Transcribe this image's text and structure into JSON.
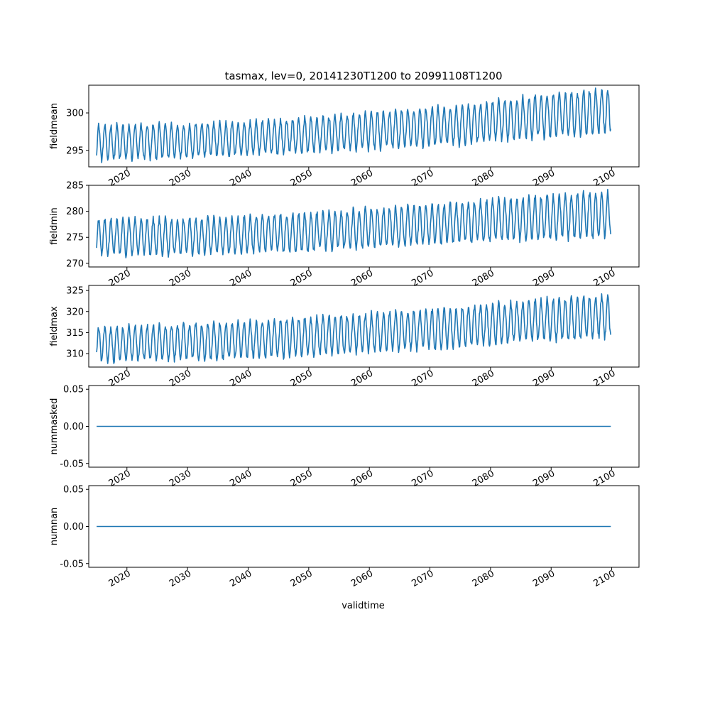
{
  "figure": {
    "title": "tasmax, lev=0, 20141230T1200 to 20991108T1200"
  },
  "colors": {
    "series": "#1f77b4",
    "axes": "#000000",
    "background": "#ffffff"
  },
  "chart_data": [
    {
      "type": "line",
      "ylabel": "fieldmean",
      "xlabel": "",
      "xlim": [
        2013.7,
        2104.5
      ],
      "ylim": [
        292.8,
        303.7
      ],
      "yticks": [
        295,
        300
      ],
      "ytick_labels": [
        "295",
        "300"
      ],
      "xticks": [
        2020,
        2030,
        2040,
        2050,
        2060,
        2070,
        2080,
        2090,
        2100
      ],
      "xtick_labels": [
        "2020",
        "2030",
        "2040",
        "2050",
        "2060",
        "2070",
        "2080",
        "2090",
        "2100"
      ],
      "series": [
        {
          "start": 2015.0,
          "end": 2099.85,
          "trend": [
            [
              2015,
              296.0
            ],
            [
              2030,
              296.3
            ],
            [
              2045,
              296.8
            ],
            [
              2060,
              297.6
            ],
            [
              2075,
              298.4
            ],
            [
              2085,
              299.3
            ],
            [
              2099.85,
              300.4
            ]
          ],
          "amplitude": [
            [
              2015,
              2.3
            ],
            [
              2040,
              2.2
            ],
            [
              2070,
              2.5
            ],
            [
              2085,
              2.7
            ],
            [
              2099.85,
              2.9
            ]
          ],
          "cycle": "annual"
        }
      ]
    },
    {
      "type": "line",
      "ylabel": "fieldmin",
      "xlabel": "",
      "xlim": [
        2013.7,
        2104.5
      ],
      "ylim": [
        269.3,
        285
      ],
      "yticks": [
        270,
        275,
        280,
        285
      ],
      "ytick_labels": [
        "270",
        "275",
        "280",
        "285"
      ],
      "xticks": [
        2020,
        2030,
        2040,
        2050,
        2060,
        2070,
        2080,
        2090,
        2100
      ],
      "xtick_labels": [
        "2020",
        "2030",
        "2040",
        "2050",
        "2060",
        "2070",
        "2080",
        "2090",
        "2100"
      ],
      "series": [
        {
          "start": 2015.0,
          "end": 2099.85,
          "trend": [
            [
              2015,
              275.0
            ],
            [
              2030,
              275.2
            ],
            [
              2045,
              275.7
            ],
            [
              2060,
              276.8
            ],
            [
              2075,
              277.8
            ],
            [
              2085,
              278.6
            ],
            [
              2099.85,
              279.4
            ]
          ],
          "amplitude": [
            [
              2015,
              3.4
            ],
            [
              2040,
              3.5
            ],
            [
              2070,
              3.7
            ],
            [
              2099.85,
              4.3
            ]
          ],
          "cycle": "annual"
        }
      ]
    },
    {
      "type": "line",
      "ylabel": "fieldmax",
      "xlabel": "",
      "xlim": [
        2013.7,
        2104.5
      ],
      "ylim": [
        306.8,
        326.2
      ],
      "yticks": [
        310,
        315,
        320,
        325
      ],
      "ytick_labels": [
        "310",
        "315",
        "320",
        "325"
      ],
      "xticks": [
        2020,
        2030,
        2040,
        2050,
        2060,
        2070,
        2080,
        2090,
        2100
      ],
      "xtick_labels": [
        "2020",
        "2030",
        "2040",
        "2050",
        "2060",
        "2070",
        "2080",
        "2090",
        "2100"
      ],
      "series": [
        {
          "start": 2015.0,
          "end": 2099.85,
          "trend": [
            [
              2015,
              312.2
            ],
            [
              2030,
              312.8
            ],
            [
              2045,
              313.6
            ],
            [
              2060,
              315.0
            ],
            [
              2075,
              316.2
            ],
            [
              2085,
              317.6
            ],
            [
              2099.85,
              319.0
            ]
          ],
          "amplitude": [
            [
              2015,
              4.0
            ],
            [
              2040,
              4.3
            ],
            [
              2070,
              4.6
            ],
            [
              2099.85,
              5.0
            ]
          ],
          "cycle": "annual"
        }
      ]
    },
    {
      "type": "line",
      "ylabel": "nummasked",
      "xlabel": "",
      "xlim": [
        2013.7,
        2104.5
      ],
      "ylim": [
        -0.055,
        0.055
      ],
      "yticks": [
        -0.05,
        0.0,
        0.05
      ],
      "ytick_labels": [
        "-0.05",
        "0.00",
        "0.05"
      ],
      "xticks": [
        2020,
        2030,
        2040,
        2050,
        2060,
        2070,
        2080,
        2090,
        2100
      ],
      "xtick_labels": [
        "2020",
        "2030",
        "2040",
        "2050",
        "2060",
        "2070",
        "2080",
        "2090",
        "2100"
      ],
      "series": [
        {
          "start": 2015.0,
          "end": 2099.85,
          "constant": 0.0
        }
      ]
    },
    {
      "type": "line",
      "ylabel": "numnan",
      "xlabel": "validtime",
      "xlim": [
        2013.7,
        2104.5
      ],
      "ylim": [
        -0.055,
        0.055
      ],
      "yticks": [
        -0.05,
        0.0,
        0.05
      ],
      "ytick_labels": [
        "-0.05",
        "0.00",
        "0.05"
      ],
      "xticks": [
        2020,
        2030,
        2040,
        2050,
        2060,
        2070,
        2080,
        2090,
        2100
      ],
      "xtick_labels": [
        "2020",
        "2030",
        "2040",
        "2050",
        "2060",
        "2070",
        "2080",
        "2090",
        "2100"
      ],
      "series": [
        {
          "start": 2015.0,
          "end": 2099.85,
          "constant": 0.0
        }
      ]
    }
  ]
}
